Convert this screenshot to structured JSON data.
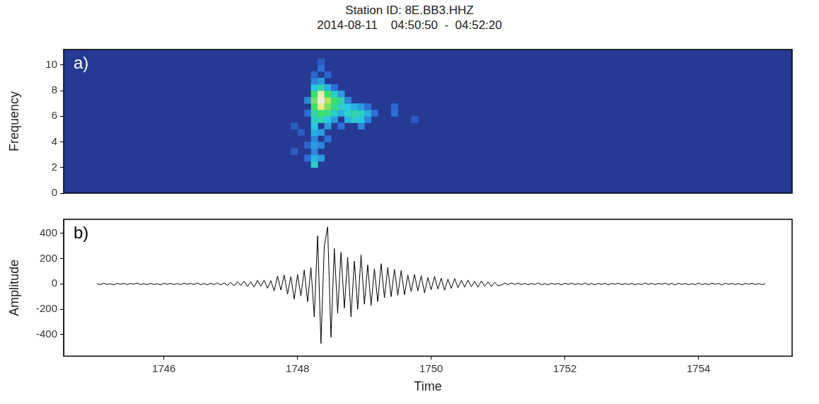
{
  "title": "Station ID: 8E.BB3.HHZ",
  "subtitle": "2014-08-11    04:50:50  -  04:52:20",
  "chart_data": [
    {
      "type": "heatmap",
      "panel": "a)",
      "y_label": "Frequency",
      "xlim": [
        1744.5,
        1755.4
      ],
      "ylim": [
        0,
        11.2
      ],
      "yticks": [
        0,
        2,
        4,
        6,
        8,
        10
      ],
      "tick_labels": "y",
      "grid": false,
      "cells": {
        "dx": 0.1,
        "dy": 0.5,
        "zlim": [
          0,
          1
        ],
        "values": [
          [
            1747.95,
            3.25,
            0.2
          ],
          [
            1747.95,
            5.25,
            0.2
          ],
          [
            1748.05,
            4.75,
            0.2
          ],
          [
            1748.15,
            2.75,
            0.3
          ],
          [
            1748.15,
            3.75,
            0.25
          ],
          [
            1748.15,
            6.25,
            0.3
          ],
          [
            1748.15,
            7.25,
            0.35
          ],
          [
            1748.25,
            2.25,
            0.55
          ],
          [
            1748.25,
            2.75,
            0.45
          ],
          [
            1748.25,
            3.25,
            0.35
          ],
          [
            1748.25,
            3.75,
            0.4
          ],
          [
            1748.25,
            4.25,
            0.35
          ],
          [
            1748.25,
            4.75,
            0.45
          ],
          [
            1748.25,
            5.25,
            0.5
          ],
          [
            1748.25,
            5.75,
            0.55
          ],
          [
            1748.25,
            6.25,
            0.6
          ],
          [
            1748.25,
            6.75,
            0.7
          ],
          [
            1748.25,
            7.25,
            0.75
          ],
          [
            1748.25,
            7.75,
            0.7
          ],
          [
            1748.25,
            8.25,
            0.5
          ],
          [
            1748.25,
            8.75,
            0.35
          ],
          [
            1748.25,
            9.25,
            0.25
          ],
          [
            1748.35,
            2.75,
            0.4
          ],
          [
            1748.35,
            3.75,
            0.35
          ],
          [
            1748.35,
            4.75,
            0.4
          ],
          [
            1748.35,
            5.75,
            0.6
          ],
          [
            1748.35,
            6.25,
            0.7
          ],
          [
            1748.35,
            6.75,
            0.9
          ],
          [
            1748.35,
            7.25,
            1.0
          ],
          [
            1748.35,
            7.75,
            0.95
          ],
          [
            1748.35,
            8.25,
            0.6
          ],
          [
            1748.35,
            8.75,
            0.4
          ],
          [
            1748.35,
            9.75,
            0.3
          ],
          [
            1748.35,
            10.25,
            0.2
          ],
          [
            1748.45,
            4.25,
            0.3
          ],
          [
            1748.45,
            5.25,
            0.4
          ],
          [
            1748.45,
            5.75,
            0.5
          ],
          [
            1748.45,
            6.25,
            0.65
          ],
          [
            1748.45,
            6.75,
            0.75
          ],
          [
            1748.45,
            7.25,
            0.8
          ],
          [
            1748.45,
            7.75,
            0.7
          ],
          [
            1748.45,
            8.25,
            0.45
          ],
          [
            1748.45,
            9.25,
            0.25
          ],
          [
            1748.55,
            5.75,
            0.4
          ],
          [
            1748.55,
            6.25,
            0.55
          ],
          [
            1748.55,
            6.75,
            0.65
          ],
          [
            1748.55,
            7.25,
            0.7
          ],
          [
            1748.55,
            7.75,
            0.55
          ],
          [
            1748.55,
            8.25,
            0.3
          ],
          [
            1748.65,
            5.25,
            0.3
          ],
          [
            1748.65,
            6.25,
            0.45
          ],
          [
            1748.65,
            6.75,
            0.55
          ],
          [
            1748.65,
            7.25,
            0.6
          ],
          [
            1748.65,
            7.75,
            0.4
          ],
          [
            1748.75,
            5.75,
            0.45
          ],
          [
            1748.75,
            6.25,
            0.55
          ],
          [
            1748.75,
            6.75,
            0.5
          ],
          [
            1748.75,
            7.25,
            0.35
          ],
          [
            1748.85,
            5.75,
            0.55
          ],
          [
            1748.85,
            6.25,
            0.6
          ],
          [
            1748.85,
            6.75,
            0.45
          ],
          [
            1748.95,
            5.25,
            0.35
          ],
          [
            1748.95,
            5.75,
            0.5
          ],
          [
            1748.95,
            6.25,
            0.55
          ],
          [
            1748.95,
            6.75,
            0.4
          ],
          [
            1749.05,
            5.75,
            0.35
          ],
          [
            1749.05,
            6.25,
            0.45
          ],
          [
            1749.05,
            6.75,
            0.3
          ],
          [
            1749.15,
            6.25,
            0.3
          ],
          [
            1749.45,
            6.25,
            0.3
          ],
          [
            1749.45,
            6.75,
            0.25
          ],
          [
            1749.75,
            5.75,
            0.2
          ]
        ]
      }
    },
    {
      "type": "line",
      "panel": "b)",
      "x_label": "Time",
      "y_label": "Amplitude",
      "xlim": [
        1744.5,
        1755.4
      ],
      "xticks": [
        1746,
        1748,
        1750,
        1752,
        1754
      ],
      "ylim": [
        -570,
        510
      ],
      "yticks": [
        -400,
        -200,
        0,
        200,
        400
      ],
      "grid": false,
      "color": "#000000",
      "x": [
        1745,
        1745.05,
        1745.1,
        1745.15,
        1745.2,
        1745.25,
        1745.3,
        1745.35,
        1745.4,
        1745.45,
        1745.5,
        1745.55,
        1745.6,
        1745.65,
        1745.7,
        1745.75,
        1745.8,
        1745.85,
        1745.9,
        1745.95,
        1746,
        1746.05,
        1746.1,
        1746.15,
        1746.2,
        1746.25,
        1746.3,
        1746.35,
        1746.4,
        1746.45,
        1746.5,
        1746.55,
        1746.6,
        1746.65,
        1746.7,
        1746.75,
        1746.8,
        1746.85,
        1746.9,
        1746.95,
        1747,
        1747.05,
        1747.1,
        1747.15,
        1747.2,
        1747.25,
        1747.3,
        1747.35,
        1747.4,
        1747.45,
        1747.5,
        1747.55,
        1747.6,
        1747.65,
        1747.7,
        1747.75,
        1747.8,
        1747.85,
        1747.9,
        1747.95,
        1748,
        1748.05,
        1748.1,
        1748.15,
        1748.2,
        1748.25,
        1748.3,
        1748.35,
        1748.4,
        1748.45,
        1748.5,
        1748.55,
        1748.6,
        1748.65,
        1748.7,
        1748.75,
        1748.8,
        1748.85,
        1748.9,
        1748.95,
        1749,
        1749.05,
        1749.1,
        1749.15,
        1749.2,
        1749.25,
        1749.3,
        1749.35,
        1749.4,
        1749.45,
        1749.5,
        1749.55,
        1749.6,
        1749.65,
        1749.7,
        1749.75,
        1749.8,
        1749.85,
        1749.9,
        1749.95,
        1750,
        1750.05,
        1750.1,
        1750.15,
        1750.2,
        1750.25,
        1750.3,
        1750.35,
        1750.4,
        1750.45,
        1750.5,
        1750.55,
        1750.6,
        1750.65,
        1750.7,
        1750.75,
        1750.8,
        1750.85,
        1750.9,
        1750.95,
        1751,
        1751.05,
        1751.1,
        1751.15,
        1751.2,
        1751.25,
        1751.3,
        1751.35,
        1751.4,
        1751.45,
        1751.5,
        1751.55,
        1751.6,
        1751.65,
        1751.7,
        1751.75,
        1751.8,
        1751.85,
        1751.9,
        1751.95,
        1752,
        1752.05,
        1752.1,
        1752.15,
        1752.2,
        1752.25,
        1752.3,
        1752.35,
        1752.4,
        1752.45,
        1752.5,
        1752.55,
        1752.6,
        1752.65,
        1752.7,
        1752.75,
        1752.8,
        1752.85,
        1752.9,
        1752.95,
        1753,
        1753.05,
        1753.1,
        1753.15,
        1753.2,
        1753.25,
        1753.3,
        1753.35,
        1753.4,
        1753.45,
        1753.5,
        1753.55,
        1753.6,
        1753.65,
        1753.7,
        1753.75,
        1753.8,
        1753.85,
        1753.9,
        1753.95,
        1754,
        1754.05,
        1754.1,
        1754.15,
        1754.2,
        1754.25,
        1754.3,
        1754.35,
        1754.4,
        1754.45,
        1754.5,
        1754.55,
        1754.6,
        1754.65,
        1754.7,
        1754.75,
        1754.8,
        1754.85,
        1754.9,
        1754.95,
        1755
      ],
      "values": [
        3,
        -5,
        6,
        -4,
        2,
        -7,
        5,
        -3,
        6,
        -6,
        4,
        -2,
        7,
        -5,
        3,
        -6,
        5,
        -4,
        2,
        -8,
        6,
        -3,
        5,
        -5,
        4,
        -6,
        7,
        -3,
        5,
        -4,
        8,
        -6,
        4,
        -7,
        6,
        -5,
        9,
        -8,
        7,
        -10,
        11,
        -14,
        18,
        -12,
        22,
        -20,
        16,
        -25,
        28,
        -18,
        30,
        -34,
        26,
        -55,
        62,
        -48,
        70,
        -80,
        58,
        -120,
        75,
        -95,
        110,
        -140,
        130,
        -260,
        380,
        -470,
        300,
        450,
        -420,
        280,
        -230,
        250,
        -190,
        210,
        -260,
        180,
        -200,
        230,
        -160,
        150,
        -170,
        120,
        -140,
        160,
        -110,
        130,
        -100,
        115,
        -90,
        105,
        -85,
        70,
        -60,
        75,
        -55,
        65,
        -70,
        50,
        -45,
        60,
        -40,
        45,
        -50,
        38,
        -35,
        42,
        -30,
        28,
        -25,
        30,
        -22,
        20,
        -26,
        24,
        -18,
        15,
        -20,
        12,
        -14,
        -8,
        6,
        -5,
        9,
        -4,
        7,
        -6,
        5,
        -7,
        4,
        -5,
        8,
        -6,
        3,
        -7,
        6,
        -4,
        5,
        -8,
        6,
        -3,
        7,
        -5,
        4,
        -6,
        8,
        -5,
        3,
        -7,
        5,
        -4,
        6,
        -8,
        5,
        -3,
        7,
        -6,
        4,
        -5,
        6,
        -7,
        3,
        -5,
        8,
        -4,
        6,
        -6,
        5,
        -3,
        7,
        -5,
        4,
        -8,
        6,
        -4,
        5,
        -7,
        3,
        -6,
        8,
        -5,
        4,
        -6,
        7,
        -3,
        5,
        -8,
        6,
        -4,
        5,
        -6,
        4,
        -7,
        5,
        -3,
        6,
        -5,
        4,
        -6,
        3
      ]
    }
  ]
}
